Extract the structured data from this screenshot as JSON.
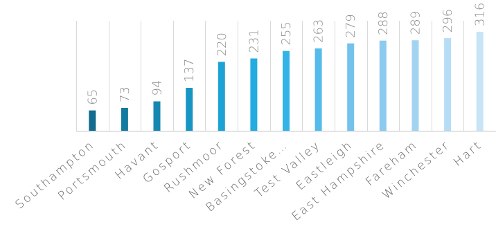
{
  "chart_data": {
    "type": "bar",
    "categories": [
      "Southampton",
      "Portsmouth",
      "Havant",
      "Gosport",
      "Rushmoor",
      "New Forest",
      "Basingstoke…",
      "Test Valley",
      "Eastleigh",
      "East Hampshire",
      "Fareham",
      "Winchester",
      "Hart"
    ],
    "values": [
      65,
      73,
      94,
      137,
      220,
      231,
      255,
      263,
      279,
      288,
      289,
      296,
      316
    ],
    "value_labels": [
      "65",
      "73",
      "94",
      "137",
      "220",
      "231",
      "255",
      "263",
      "279",
      "288",
      "289",
      "296",
      "316"
    ],
    "colors": [
      "#146b8e",
      "#157aa0",
      "#1687b0",
      "#1896c3",
      "#1aa3d4",
      "#22ace0",
      "#33b3e6",
      "#55bbea",
      "#72c2ec",
      "#8ccbef",
      "#a2d4f2",
      "#b6ddf5",
      "#c7e5f7"
    ],
    "title": "",
    "xlabel": "",
    "ylabel": "",
    "ylim": [
      0,
      316
    ],
    "grid": true,
    "legend": "none"
  }
}
